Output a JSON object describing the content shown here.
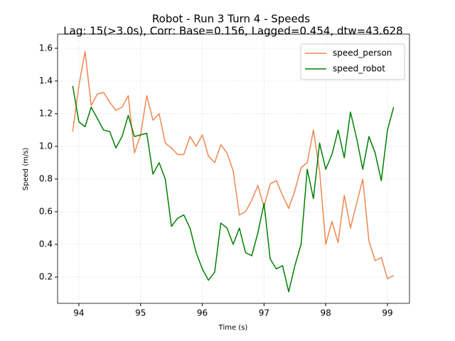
{
  "chart_data": {
    "type": "line",
    "title": "Robot - Run 3 Turn 4 - Speeds",
    "subtitle": "Lag: 15(>3.0s), Corr: Base=0.156, Lagged=0.454, dtw=43.628",
    "x_label": "Time (s)",
    "y_label": "Speed (m/s)",
    "x": [
      93.9,
      94.0,
      94.1,
      94.2,
      94.3,
      94.4,
      94.5,
      94.6,
      94.7,
      94.8,
      94.9,
      95.0,
      95.1,
      95.2,
      95.3,
      95.4,
      95.5,
      95.6,
      95.7,
      95.8,
      95.9,
      96.0,
      96.1,
      96.2,
      96.3,
      96.4,
      96.5,
      96.6,
      96.7,
      96.8,
      96.9,
      97.0,
      97.1,
      97.2,
      97.3,
      97.4,
      97.5,
      97.6,
      97.7,
      97.8,
      97.9,
      98.0,
      98.1,
      98.2,
      98.3,
      98.4,
      98.5,
      98.6,
      98.7,
      98.8,
      98.9,
      99.0,
      99.1
    ],
    "series": [
      {
        "name": "speed_person",
        "color": "#f08650",
        "values": [
          1.09,
          1.37,
          1.58,
          1.25,
          1.32,
          1.33,
          1.27,
          1.22,
          1.24,
          1.31,
          0.96,
          1.07,
          1.31,
          1.16,
          1.2,
          1.02,
          0.99,
          0.95,
          0.95,
          1.06,
          1.0,
          1.07,
          0.94,
          0.9,
          1.01,
          0.96,
          0.85,
          0.58,
          0.6,
          0.67,
          0.76,
          0.63,
          0.77,
          0.79,
          0.7,
          0.62,
          0.73,
          0.87,
          0.9,
          1.1,
          0.85,
          0.4,
          0.54,
          0.41,
          0.7,
          0.5,
          0.65,
          0.8,
          0.42,
          0.3,
          0.32,
          0.19,
          0.21
        ]
      },
      {
        "name": "speed_robot",
        "color": "#008000",
        "values": [
          1.37,
          1.15,
          1.12,
          1.24,
          1.17,
          1.1,
          1.09,
          0.99,
          1.06,
          1.19,
          1.06,
          1.07,
          1.08,
          0.83,
          0.9,
          0.8,
          0.51,
          0.56,
          0.58,
          0.5,
          0.35,
          0.25,
          0.18,
          0.23,
          0.53,
          0.5,
          0.4,
          0.5,
          0.35,
          0.33,
          0.47,
          0.65,
          0.31,
          0.25,
          0.27,
          0.11,
          0.27,
          0.4,
          0.86,
          0.68,
          1.02,
          0.86,
          0.95,
          1.1,
          0.93,
          1.21,
          1.05,
          0.86,
          1.06,
          0.96,
          0.79,
          1.1,
          1.24
        ]
      }
    ],
    "xlim": [
      93.655,
      99.357
    ],
    "ylim": [
      0.039,
      1.687
    ],
    "xticks": [
      94,
      95,
      96,
      97,
      98,
      99
    ],
    "yticks": [
      0.2,
      0.4,
      0.6,
      0.8,
      {
        "value": 1,
        "label": "1.0"
      },
      1.2,
      1.4,
      1.6
    ],
    "grid": true,
    "legend": "upper right"
  }
}
